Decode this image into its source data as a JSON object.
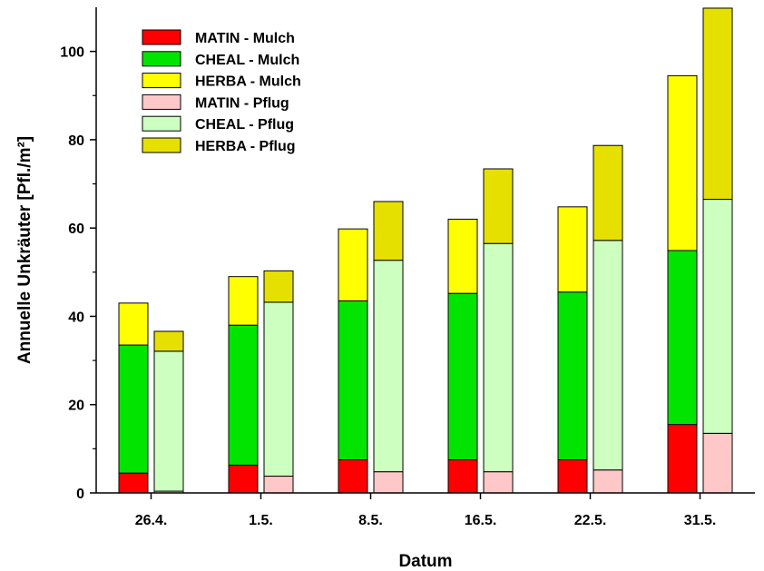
{
  "chart_data": {
    "type": "bar",
    "stacked": true,
    "title": "",
    "xlabel": "Datum",
    "ylabel": "Annuelle Unkräuter [Pfl./m²]",
    "ylim": [
      0,
      110
    ],
    "yticks": [
      0,
      20,
      40,
      60,
      80,
      100
    ],
    "categories": [
      "26.4.",
      "1.5.",
      "8.5.",
      "16.5.",
      "22.5.",
      "31.5."
    ],
    "legend_position": "top-left",
    "groups": [
      {
        "name": "Mulch",
        "series": [
          {
            "name": "MATIN - Mulch",
            "color": "#ff0000",
            "values": [
              4.5,
              6.3,
              7.5,
              7.5,
              7.5,
              15.5
            ]
          },
          {
            "name": "CHEAL - Mulch",
            "color": "#00e400",
            "values": [
              29.0,
              31.7,
              36.0,
              37.7,
              38.0,
              39.4
            ]
          },
          {
            "name": "HERBA - Mulch",
            "color": "#ffff00",
            "values": [
              9.5,
              11.0,
              16.3,
              16.8,
              19.3,
              39.6
            ]
          }
        ]
      },
      {
        "name": "Pflug",
        "series": [
          {
            "name": "MATIN - Pflug",
            "color": "#ffc8c8",
            "values": [
              0.4,
              3.8,
              4.8,
              4.8,
              5.2,
              13.5
            ]
          },
          {
            "name": "CHEAL - Pflug",
            "color": "#ccffc0",
            "values": [
              31.7,
              39.4,
              47.9,
              51.7,
              52.0,
              53.0
            ]
          },
          {
            "name": "HERBA - Pflug",
            "color": "#e6e000",
            "values": [
              4.5,
              7.1,
              13.3,
              16.9,
              21.5,
              43.3
            ]
          }
        ]
      }
    ]
  }
}
